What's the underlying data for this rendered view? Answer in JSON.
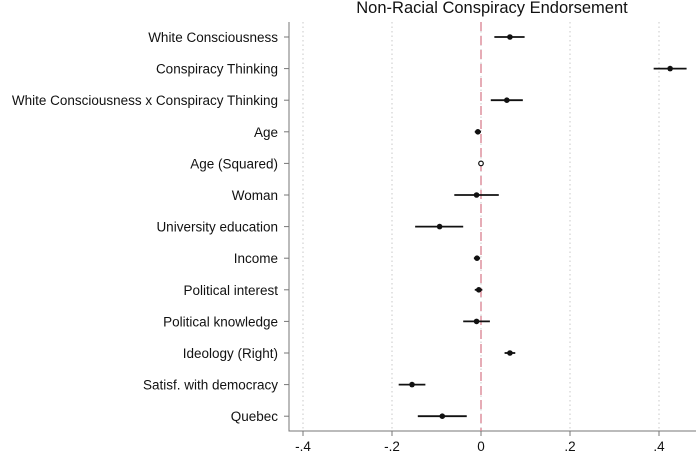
{
  "chart_data": {
    "type": "coefficient-plot",
    "title": "Non-Racial Conspiracy Endorsement",
    "xlabel": "",
    "ylabel": "",
    "xlim": [
      -0.42,
      0.48
    ],
    "xticks": [
      -0.4,
      -0.2,
      0,
      0.2,
      0.4
    ],
    "xtick_labels": [
      "-.4",
      "-.2",
      "0",
      ".2",
      ".4"
    ],
    "reference_line": {
      "x": 0,
      "color": "#d9808f",
      "style": "dashed"
    },
    "grid": "vertical dotted",
    "series": [
      {
        "points": [
          {
            "label": "White Consciousness",
            "estimate": 0.065,
            "ci_low": 0.03,
            "ci_high": 0.098,
            "marker": "filled"
          },
          {
            "label": "Conspiracy Thinking",
            "estimate": 0.425,
            "ci_low": 0.388,
            "ci_high": 0.462,
            "marker": "filled"
          },
          {
            "label": "White Consciousness x Conspiracy Thinking",
            "estimate": 0.058,
            "ci_low": 0.022,
            "ci_high": 0.094,
            "marker": "filled"
          },
          {
            "label": "Age",
            "estimate": -0.007,
            "ci_low": -0.014,
            "ci_high": 0.0,
            "marker": "filled"
          },
          {
            "label": "Age (Squared)",
            "estimate": 0.0,
            "ci_low": -0.001,
            "ci_high": 0.001,
            "marker": "hollow"
          },
          {
            "label": "Woman",
            "estimate": -0.01,
            "ci_low": -0.06,
            "ci_high": 0.04,
            "marker": "filled"
          },
          {
            "label": "University education",
            "estimate": -0.093,
            "ci_low": -0.148,
            "ci_high": -0.04,
            "marker": "filled"
          },
          {
            "label": "Income",
            "estimate": -0.009,
            "ci_low": -0.016,
            "ci_high": -0.002,
            "marker": "filled"
          },
          {
            "label": "Political interest",
            "estimate": -0.005,
            "ci_low": -0.014,
            "ci_high": 0.003,
            "marker": "filled"
          },
          {
            "label": "Political knowledge",
            "estimate": -0.01,
            "ci_low": -0.04,
            "ci_high": 0.02,
            "marker": "filled"
          },
          {
            "label": "Ideology (Right)",
            "estimate": 0.065,
            "ci_low": 0.053,
            "ci_high": 0.077,
            "marker": "filled"
          },
          {
            "label": "Satisf. with democracy",
            "estimate": -0.155,
            "ci_low": -0.185,
            "ci_high": -0.125,
            "marker": "filled"
          },
          {
            "label": "Quebec",
            "estimate": -0.087,
            "ci_low": -0.142,
            "ci_high": -0.032,
            "marker": "filled"
          }
        ]
      }
    ]
  }
}
